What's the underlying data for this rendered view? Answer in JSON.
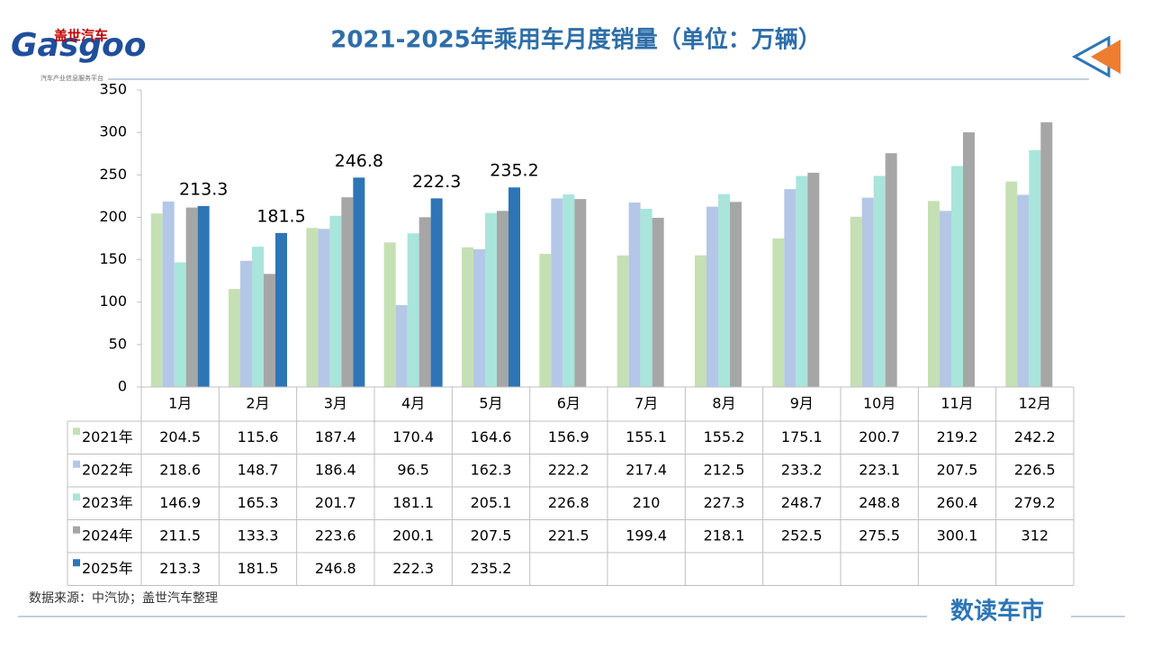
{
  "logo": {
    "name": "盖世汽车",
    "brand": "Gasgoo",
    "tagline": "汽车产业信息服务平台"
  },
  "footer_brand": "数读车市",
  "chart_data": {
    "type": "bar",
    "title": "2021-2025年乘用车月度销量（单位：万辆）",
    "source": "数据来源：中汽协；盖世汽车整理",
    "categories": [
      "1月",
      "2月",
      "3月",
      "4月",
      "5月",
      "6月",
      "7月",
      "8月",
      "9月",
      "10月",
      "11月",
      "12月"
    ],
    "series": [
      {
        "name": "2021年",
        "color": "#c5e0b4",
        "values": [
          204.5,
          115.6,
          187.4,
          170.4,
          164.6,
          156.9,
          155.1,
          155.2,
          175.1,
          200.7,
          219.2,
          242.2
        ]
      },
      {
        "name": "2022年",
        "color": "#b4c7e7",
        "values": [
          218.6,
          148.7,
          186.4,
          96.5,
          162.3,
          222.2,
          217.4,
          212.5,
          233.2,
          223.1,
          207.5,
          226.5
        ]
      },
      {
        "name": "2023年",
        "color": "#a9e5da",
        "values": [
          146.9,
          165.3,
          201.7,
          181.1,
          205.1,
          226.8,
          210,
          227.3,
          248.7,
          248.8,
          260.4,
          279.2
        ]
      },
      {
        "name": "2024年",
        "color": "#a6a6a6",
        "values": [
          211.5,
          133.3,
          223.6,
          200.1,
          207.5,
          221.5,
          199.4,
          218.1,
          252.5,
          275.5,
          300.1,
          312
        ]
      },
      {
        "name": "2025年",
        "color": "#2e75b6",
        "values": [
          213.3,
          181.5,
          246.8,
          222.3,
          235.2,
          null,
          null,
          null,
          null,
          null,
          null,
          null
        ],
        "data_labels": true
      }
    ],
    "ylim": [
      0,
      350
    ],
    "yticks": [
      0,
      50,
      100,
      150,
      200,
      250,
      300,
      350
    ],
    "grid": false
  }
}
